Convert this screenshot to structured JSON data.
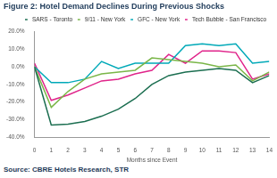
{
  "chart_data": {
    "type": "line",
    "title": "Figure 2: Hotel Demand Declines During Previous Shocks",
    "source": "Source: CBRE Hotels Research, STR",
    "x_label": "Months since Event",
    "x": [
      0,
      1,
      2,
      3,
      4,
      5,
      6,
      7,
      8,
      9,
      10,
      11,
      12,
      13,
      14
    ],
    "xlim": [
      0,
      14
    ],
    "xticks": [
      0,
      1,
      2,
      3,
      4,
      5,
      6,
      7,
      8,
      9,
      10,
      11,
      12,
      13,
      14
    ],
    "ylim": [
      -40,
      20
    ],
    "yticks": [
      {
        "value": -40,
        "label": "-40.0%"
      },
      {
        "value": -30,
        "label": "-30.0%"
      },
      {
        "value": -20,
        "label": "-20.0%"
      },
      {
        "value": -10,
        "label": "-10.0%"
      },
      {
        "value": 0,
        "label": "0.0%"
      },
      {
        "value": 10,
        "label": "10.0%"
      },
      {
        "value": 20,
        "label": "20.0%"
      }
    ],
    "grid": false,
    "legend": "top",
    "series": [
      {
        "name": "SARS - Toronto",
        "color": "#1b6e50",
        "values": [
          0,
          -33,
          -32.5,
          -31,
          -28,
          -24,
          -18,
          -10,
          -5,
          -3,
          -2,
          -1,
          -2,
          -9,
          -5
        ]
      },
      {
        "name": "9/11 - New York",
        "color": "#7ab648",
        "values": [
          0,
          -23,
          -14,
          -7,
          -4,
          -3,
          -2,
          5,
          4,
          3,
          2,
          0,
          1,
          -8,
          -3
        ]
      },
      {
        "name": "GFC - New York",
        "color": "#00a9b8",
        "values": [
          0,
          -9,
          -9,
          -7,
          3,
          -1,
          2,
          2,
          2,
          12,
          13,
          12,
          13,
          2,
          3
        ]
      },
      {
        "name": "Tech Bubble - San Francisco",
        "color": "#e0248a",
        "values": [
          2,
          -19,
          -16,
          -12,
          -8,
          -7,
          -4,
          -2,
          7,
          2,
          9,
          9,
          8,
          -7,
          -4
        ]
      }
    ]
  }
}
